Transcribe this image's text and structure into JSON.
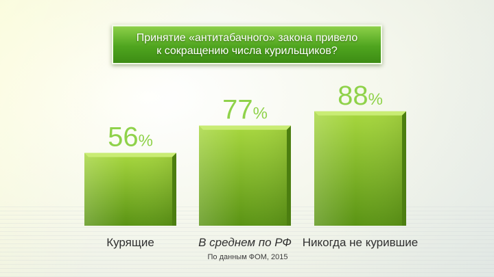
{
  "title": "Принятие «антитабачного» закона привело\nк сокращению числа курильщиков?",
  "source": "По данным ФОМ, 2015",
  "colors": {
    "bar_light": "#9fd13a",
    "bar_dark": "#5b9415",
    "value_text": "#8fd24a",
    "title_box": "#5fb12a"
  },
  "chart_data": {
    "type": "bar",
    "title": "Принятие «антитабачного» закона привело к сокращению числа курильщиков?",
    "categories": [
      "Курящие",
      "В среднем по РФ",
      "Никогда не курившие"
    ],
    "values": [
      56,
      77,
      88
    ],
    "value_labels": [
      "56",
      "77",
      "88"
    ],
    "value_suffix": "%",
    "emphasized_category_index": 1,
    "ylim": [
      0,
      100
    ],
    "xlabel": "",
    "ylabel": "",
    "grid": false,
    "legend": "none"
  }
}
